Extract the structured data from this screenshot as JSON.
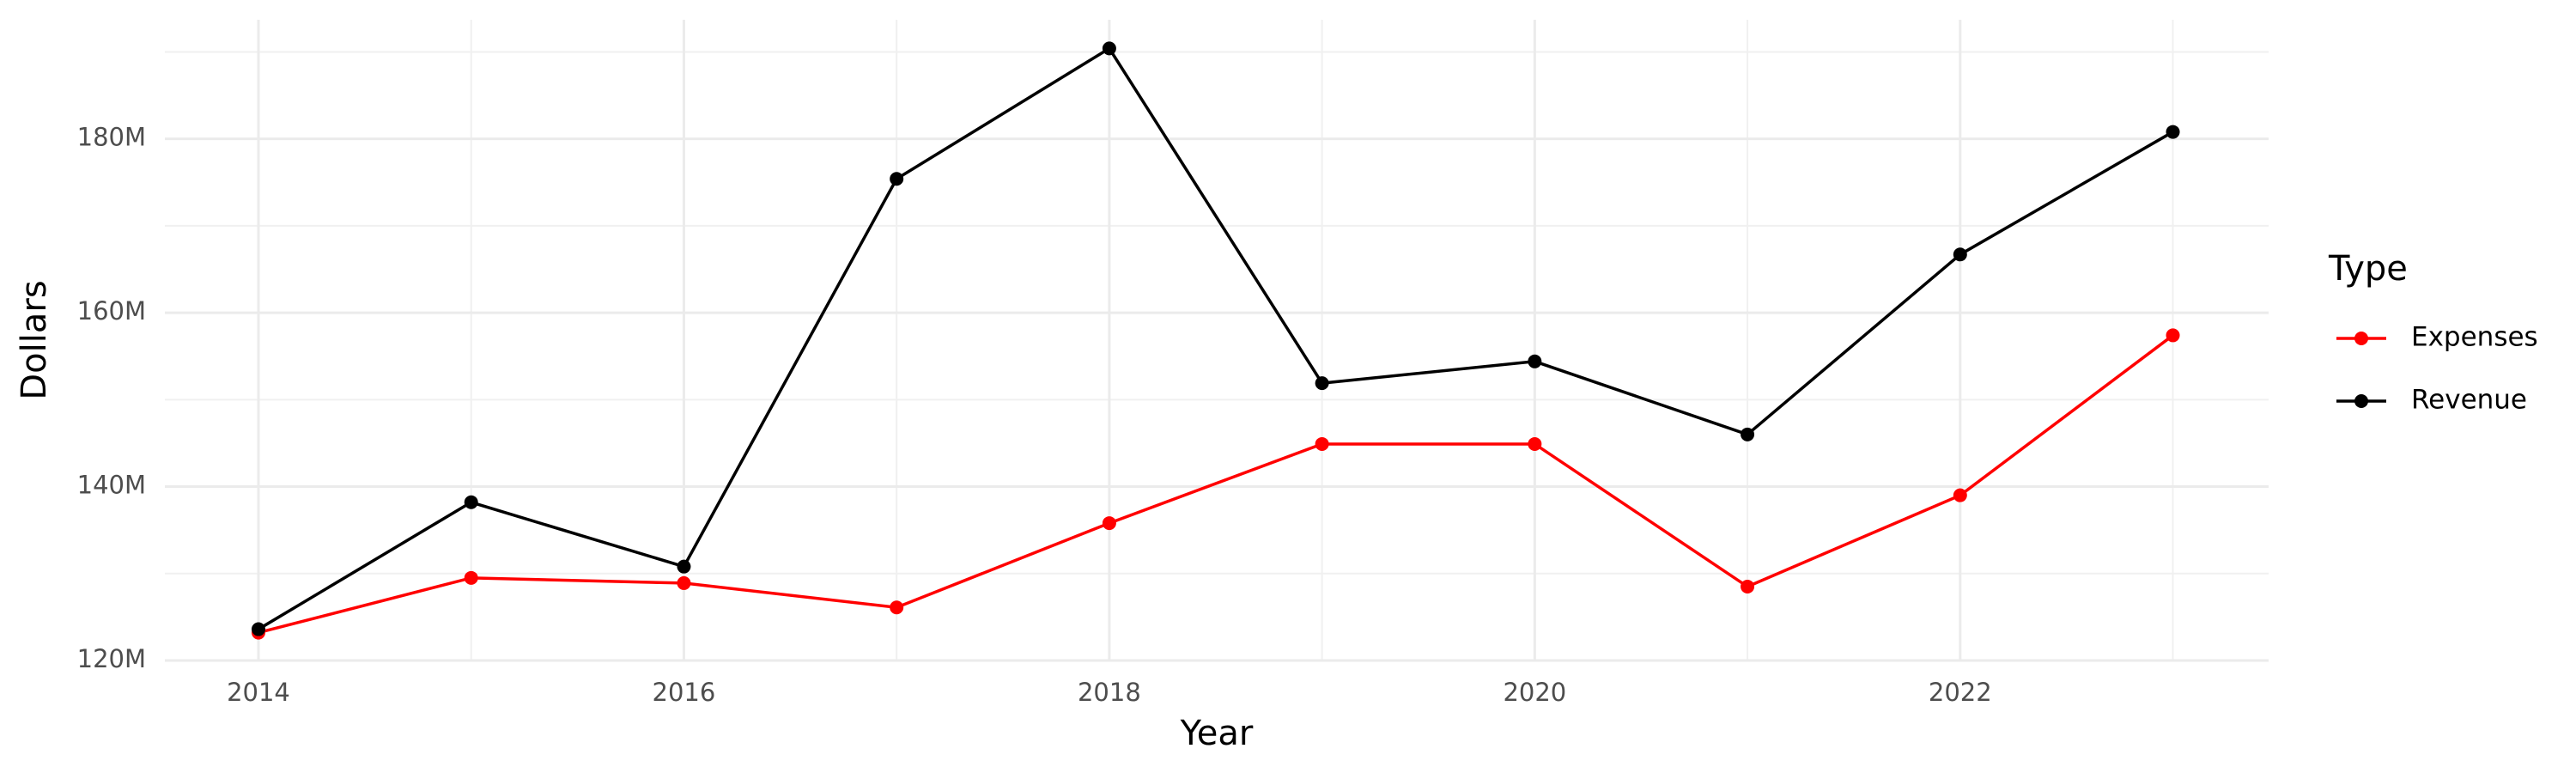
{
  "chart_data": {
    "type": "line",
    "x_label": "Year",
    "y_label": "Dollars",
    "legend_title": "Type",
    "legend_position": "right",
    "grid": true,
    "x": [
      2014,
      2015,
      2016,
      2017,
      2018,
      2019,
      2020,
      2021,
      2022,
      2023
    ],
    "series": [
      {
        "name": "Expenses",
        "color": "#ff0000",
        "values": [
          123200000,
          129500000,
          128900000,
          126100000,
          135800000,
          144900000,
          144900000,
          128500000,
          139000000,
          157400000
        ]
      },
      {
        "name": "Revenue",
        "color": "#000000",
        "values": [
          123600000,
          138200000,
          130800000,
          175400000,
          190400000,
          151900000,
          154400000,
          146000000,
          166700000,
          180800000
        ]
      }
    ],
    "xlim": [
      2013.56,
      2023.45
    ],
    "xticks": [
      2014,
      2016,
      2018,
      2020,
      2022
    ],
    "ylim": [
      120000000,
      193700000
    ],
    "yticks": [
      {
        "value": 120000000,
        "label": "120M"
      },
      {
        "value": 140000000,
        "label": "140M"
      },
      {
        "value": 160000000,
        "label": "160M"
      },
      {
        "value": 180000000,
        "label": "180M"
      }
    ]
  }
}
